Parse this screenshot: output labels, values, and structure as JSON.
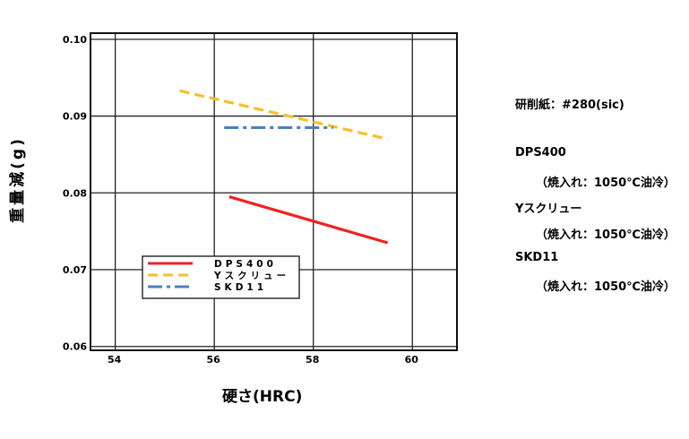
{
  "chart_data": {
    "type": "line",
    "xlabel": "硬さ(HRC)",
    "ylabel": "重量減(g)",
    "xlim": [
      53.5,
      60.9
    ],
    "ylim": [
      0.0595,
      0.1008
    ],
    "x_ticks": [
      54,
      56,
      58,
      60
    ],
    "x_tick_labels": [
      "54",
      "56",
      "58",
      "60"
    ],
    "y_ticks": [
      0.06,
      0.07,
      0.08,
      0.09,
      0.1
    ],
    "y_tick_labels": [
      "0.06",
      "0.07",
      "0.08",
      "0.09",
      "0.10"
    ],
    "grid": true,
    "legend_position": "lower-left",
    "series": [
      {
        "name": "DPS400",
        "color": "#ee2222",
        "style": "solid",
        "x": [
          56.3,
          59.5
        ],
        "y": [
          0.0795,
          0.0735
        ]
      },
      {
        "name": "Yスクリュー",
        "color": "#f5c02a",
        "style": "dashed",
        "x": [
          55.3,
          59.5
        ],
        "y": [
          0.0933,
          0.087
        ]
      },
      {
        "name": "SKD11",
        "color": "#4a7fc1",
        "style": "dashdot",
        "x": [
          56.2,
          58.4
        ],
        "y": [
          0.0885,
          0.0885
        ]
      }
    ]
  },
  "notes": {
    "abrasive": "研削紙：#280(sic)",
    "items": [
      {
        "material": "DPS400",
        "treatment": "（焼入れ：1050℃油冷）"
      },
      {
        "material": "Yスクリュー",
        "treatment": "（焼入れ：1050℃油冷）"
      },
      {
        "material": "SKD11",
        "treatment": "（焼入れ：1050℃油冷）"
      }
    ]
  }
}
